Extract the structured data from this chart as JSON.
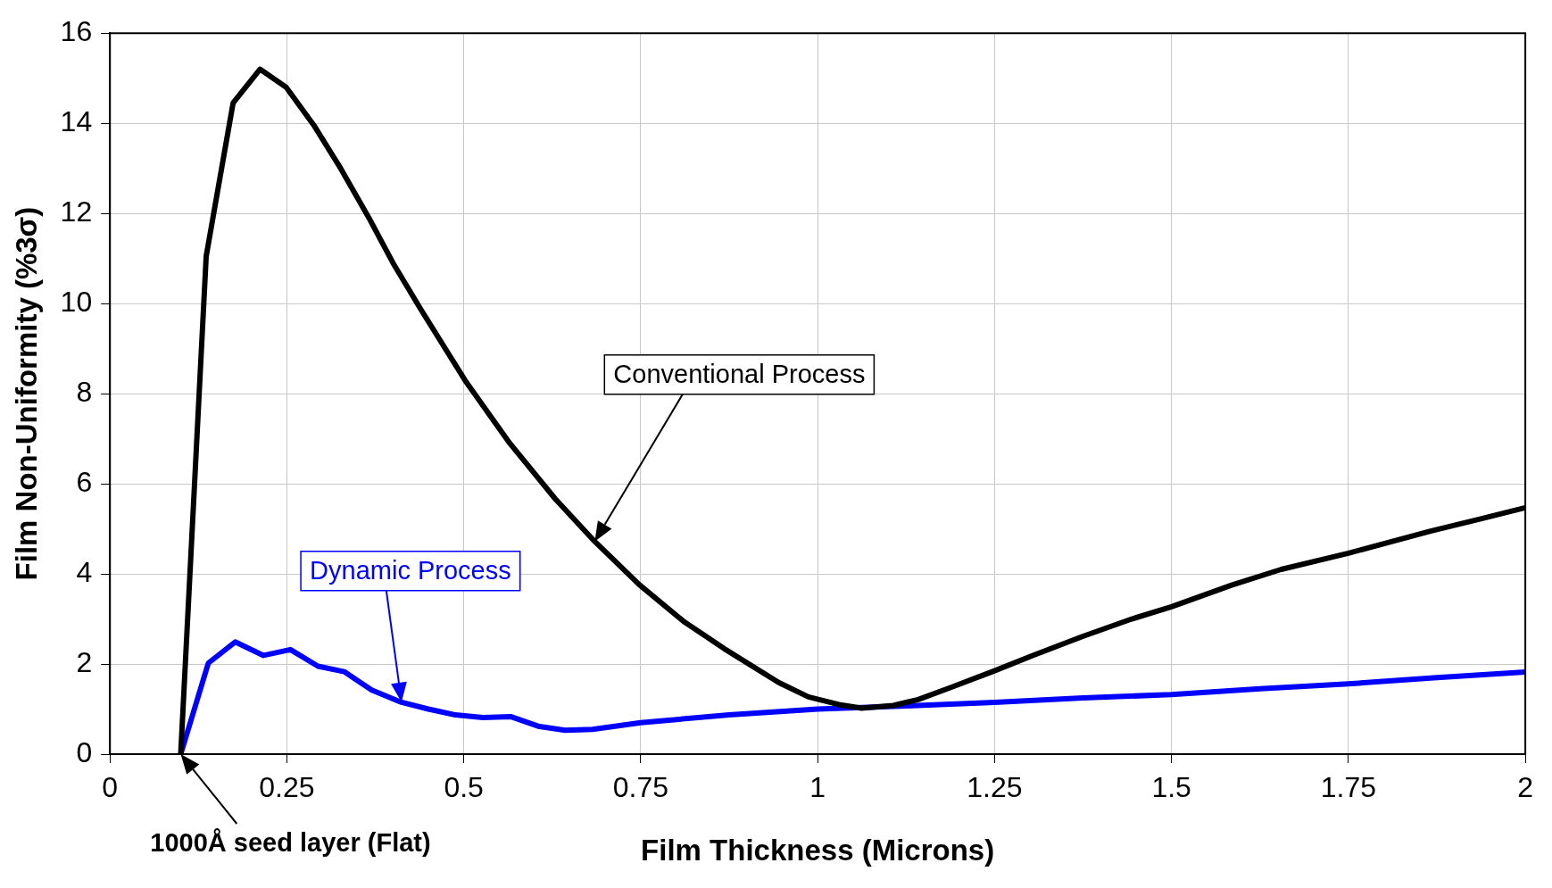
{
  "chart_data": {
    "type": "line",
    "xlabel": "Film Thickness (Microns)",
    "ylabel": "Film Non-Uniformity (%3σ)",
    "xlim": [
      0,
      2
    ],
    "xticks": [
      0,
      0.25,
      0.5,
      0.75,
      1,
      1.25,
      1.5,
      1.75,
      2
    ],
    "ylim": [
      0,
      16
    ],
    "yticks": [
      0,
      2,
      4,
      6,
      8,
      10,
      12,
      14,
      16
    ],
    "grid": true,
    "legend": false,
    "marker": "none",
    "line_style": "solid",
    "series": [
      {
        "color": "#000000",
        "x": [
          0.1,
          0.136,
          0.174,
          0.212,
          0.249,
          0.288,
          0.326,
          0.366,
          0.4,
          0.439,
          0.502,
          0.565,
          0.629,
          0.685,
          0.748,
          0.812,
          0.868,
          0.945,
          0.987,
          1.03,
          1.062,
          1.107,
          1.142,
          1.19,
          1.25,
          1.304,
          1.374,
          1.444,
          1.5,
          1.585,
          1.655,
          1.75,
          1.866,
          1.937,
          2.0
        ],
        "values": [
          0,
          11.05,
          14.45,
          15.2,
          14.8,
          13.96,
          13.0,
          11.9,
          10.9,
          9.88,
          8.29,
          6.9,
          5.67,
          4.72,
          3.76,
          2.93,
          2.34,
          1.59,
          1.27,
          1.1,
          1.02,
          1.08,
          1.21,
          1.49,
          1.85,
          2.19,
          2.61,
          3.0,
          3.27,
          3.75,
          4.1,
          4.46,
          4.95,
          5.22,
          5.47
        ]
      },
      {
        "color": "#0000ff",
        "x": [
          0.1,
          0.139,
          0.177,
          0.217,
          0.255,
          0.294,
          0.331,
          0.37,
          0.412,
          0.45,
          0.488,
          0.527,
          0.567,
          0.605,
          0.643,
          0.682,
          0.75,
          0.875,
          1.0,
          1.125,
          1.25,
          1.375,
          1.5,
          1.625,
          1.75,
          1.875,
          2.0
        ],
        "values": [
          0,
          2.02,
          2.49,
          2.19,
          2.32,
          1.95,
          1.83,
          1.42,
          1.15,
          1.0,
          0.87,
          0.81,
          0.83,
          0.62,
          0.53,
          0.55,
          0.7,
          0.87,
          1.0,
          1.07,
          1.15,
          1.25,
          1.32,
          1.45,
          1.56,
          1.7,
          1.82
        ]
      }
    ],
    "annotations": [
      "Conventional Process",
      "Dynamic Process",
      {
        "text": "1000Å seed layer (Flat)",
        "x": 0.1,
        "y": 0
      }
    ]
  }
}
